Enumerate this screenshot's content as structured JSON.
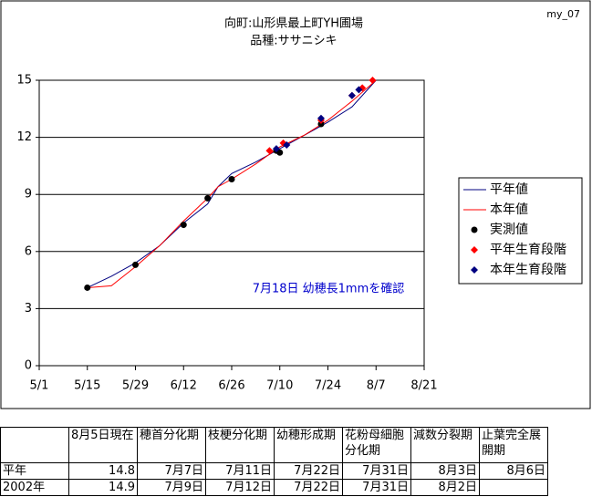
{
  "chart_data": {
    "type": "line",
    "title": "向町:山形県最上町YH圃場",
    "subtitle": "品種:ササニシキ",
    "corner_label": "my_07",
    "annotation": "7月18日 幼穂長1mmを確認",
    "annotation_color": "#0000cc",
    "xlim": [
      "5/1",
      "8/21"
    ],
    "xticks": [
      "5/1",
      "5/15",
      "5/29",
      "6/12",
      "6/26",
      "7/10",
      "7/24",
      "8/7",
      "8/21"
    ],
    "ylim": [
      0,
      15
    ],
    "yticks": [
      0,
      3,
      6,
      9,
      12,
      15
    ],
    "grid": true,
    "legend": "right",
    "series": [
      {
        "name": "平年値",
        "color": "#000080",
        "marker": "line",
        "x": [
          "5/15",
          "5/22",
          "5/29",
          "6/5",
          "6/12",
          "6/19",
          "6/22",
          "6/26",
          "7/3",
          "7/10",
          "7/17",
          "7/24",
          "7/31",
          "8/7"
        ],
        "values": [
          4.1,
          4.7,
          5.4,
          6.3,
          7.5,
          8.5,
          9.4,
          10.1,
          10.7,
          11.4,
          12.1,
          12.8,
          13.6,
          15.0
        ]
      },
      {
        "name": "本年値",
        "color": "#ff0000",
        "marker": "line",
        "x": [
          "5/15",
          "5/22",
          "5/29",
          "6/5",
          "6/12",
          "6/19",
          "6/22",
          "6/26",
          "7/3",
          "7/10",
          "7/17",
          "7/24",
          "7/31",
          "8/7"
        ],
        "values": [
          4.1,
          4.2,
          5.2,
          6.3,
          7.6,
          8.8,
          9.4,
          9.8,
          10.6,
          11.5,
          12.1,
          12.9,
          13.9,
          15.0
        ]
      },
      {
        "name": "実測値",
        "color": "#000000",
        "marker": "circle",
        "x": [
          "5/15",
          "5/29",
          "6/12",
          "6/19",
          "6/26",
          "7/9",
          "7/10",
          "7/22"
        ],
        "values": [
          4.1,
          5.3,
          7.4,
          8.8,
          9.8,
          11.3,
          11.2,
          12.7
        ]
      },
      {
        "name": "平年生育段階",
        "color": "#ff0000",
        "marker": "diamond",
        "x": [
          "7/7",
          "7/11",
          "7/22",
          "7/31",
          "8/3",
          "8/6"
        ],
        "values": [
          11.3,
          11.7,
          12.9,
          14.2,
          14.6,
          15.0
        ]
      },
      {
        "name": "本年生育段階",
        "color": "#000080",
        "marker": "diamond",
        "x": [
          "7/9",
          "7/12",
          "7/22",
          "7/31",
          "8/2"
        ],
        "values": [
          11.4,
          11.6,
          13.0,
          14.2,
          14.5
        ]
      }
    ]
  },
  "table": {
    "header": [
      null,
      "8月5日現在",
      "穂首分化期",
      "枝梗分化期",
      "幼穂形成期",
      "花粉母細胞分化期",
      "減数分裂期",
      "止葉完全展開期"
    ],
    "rows": [
      [
        "平年",
        "14.8",
        "7月7日",
        "7月11日",
        "7月22日",
        "7月31日",
        "8月3日",
        "8月6日"
      ],
      [
        "2002年",
        "14.9",
        "7月9日",
        "7月12日",
        "7月22日",
        "7月31日",
        "8月2日",
        null
      ]
    ]
  }
}
